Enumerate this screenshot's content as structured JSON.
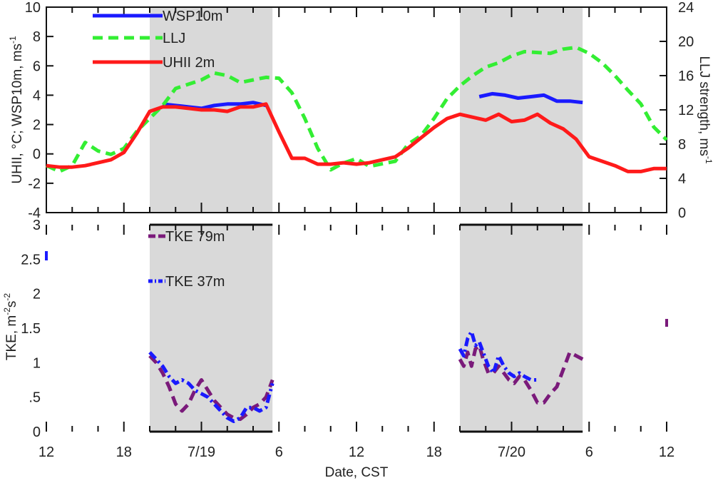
{
  "chart_data": [
    {
      "type": "line",
      "panel": "top",
      "xlabel": "Date, CST",
      "x_tick_labels": [
        "12",
        "18",
        "7/19",
        "6",
        "12",
        "18",
        "7/20",
        "6",
        "12"
      ],
      "xlim": [
        12,
        60
      ],
      "ylabel_left": "UHII, °C; WSP10m, ms",
      "ylabel_left_sup": "-1",
      "ylim_left": [
        -4,
        10
      ],
      "yticks_left": [
        "-4",
        "-2",
        "0",
        "2",
        "4",
        "6",
        "8",
        "10"
      ],
      "ylabel_right": "LLJ strength, ms",
      "ylabel_right_sup": "-1",
      "ylim_right": [
        0,
        24
      ],
      "yticks_right": [
        "0",
        "4",
        "8",
        "12",
        "16",
        "20",
        "24"
      ],
      "night_shading": [
        [
          20,
          29.5
        ],
        [
          44,
          53.5
        ]
      ],
      "legend": [
        "WSP10m",
        "LLJ",
        "UHII 2m"
      ],
      "series": [
        {
          "name": "WSP10m",
          "color": "#1a1aff",
          "axis": "left",
          "style": "solid",
          "x": [
            21,
            22,
            23,
            24,
            25,
            26,
            27,
            28,
            29
          ],
          "values": [
            3.4,
            3.3,
            3.2,
            3.1,
            3.3,
            3.4,
            3.4,
            3.5,
            3.3
          ],
          "x2": [
            45.5,
            46.5,
            47.5,
            48.5,
            49.5,
            50.5,
            51.5,
            52.5,
            53.5
          ],
          "values2": [
            3.9,
            4.1,
            4.0,
            3.8,
            3.9,
            4.0,
            3.6,
            3.6,
            3.5
          ]
        },
        {
          "name": "LLJ",
          "color": "#33ee33",
          "axis": "right",
          "style": "dashed",
          "x": [
            12,
            13,
            14,
            15,
            16,
            17,
            18,
            19,
            20,
            21,
            22,
            23,
            24,
            25,
            26,
            27,
            28,
            29,
            30,
            31,
            32,
            33,
            34,
            35,
            36,
            37,
            38,
            39,
            40,
            41,
            42,
            43,
            44,
            45,
            46,
            47,
            48,
            49,
            50,
            51,
            52,
            53,
            54,
            55,
            56,
            57,
            58,
            59,
            60
          ],
          "values": [
            5.5,
            4.8,
            5.5,
            8.2,
            7.2,
            6.8,
            7.5,
            9.5,
            11.0,
            12.5,
            14.5,
            15.0,
            15.5,
            16.3,
            16.0,
            15.2,
            15.5,
            15.8,
            15.7,
            14.0,
            11.0,
            7.5,
            5.0,
            5.8,
            6.3,
            5.4,
            5.7,
            6.0,
            8.0,
            9.0,
            11.0,
            13.3,
            14.8,
            16.0,
            17.0,
            17.5,
            18.3,
            18.8,
            18.7,
            18.6,
            19.1,
            19.3,
            18.6,
            17.5,
            16.0,
            14.3,
            12.7,
            10.0,
            8.5
          ]
        },
        {
          "name": "UHII 2m",
          "color": "#ff1a1a",
          "axis": "left",
          "style": "solid",
          "x": [
            12,
            13,
            14,
            15,
            16,
            17,
            18,
            19,
            20,
            21,
            22,
            23,
            24,
            25,
            26,
            27,
            28,
            29,
            30,
            31,
            32,
            33,
            34,
            35,
            36,
            37,
            38,
            39,
            40,
            41,
            42,
            43,
            44,
            45,
            46,
            47,
            48,
            49,
            50,
            51,
            52,
            53,
            54,
            55,
            56,
            57,
            58,
            59,
            60
          ],
          "values": [
            -0.8,
            -0.9,
            -0.9,
            -0.8,
            -0.6,
            -0.4,
            0.1,
            1.4,
            2.9,
            3.2,
            3.2,
            3.1,
            3.0,
            3.0,
            2.9,
            3.2,
            3.2,
            3.4,
            1.5,
            -0.3,
            -0.3,
            -0.7,
            -0.7,
            -0.6,
            -0.7,
            -0.6,
            -0.4,
            -0.2,
            0.4,
            1.1,
            1.8,
            2.4,
            2.7,
            2.5,
            2.3,
            2.7,
            2.2,
            2.3,
            2.7,
            2.1,
            1.7,
            1.0,
            -0.2,
            -0.5,
            -0.8,
            -1.2,
            -1.2,
            -1.0,
            -1.0
          ]
        }
      ]
    },
    {
      "type": "line",
      "panel": "bottom",
      "xlabel": "Date, CST",
      "x_tick_labels": [
        "12",
        "18",
        "7/19",
        "6",
        "12",
        "18",
        "7/20",
        "6",
        "12"
      ],
      "xlim": [
        12,
        60
      ],
      "ylabel": "TKE, m",
      "ylabel_sup1": "-2",
      "ylabel_mid": "s",
      "ylabel_sup2": "-2",
      "ylim": [
        0,
        3
      ],
      "yticks": [
        "0",
        ".5",
        "1",
        "1.5",
        "2",
        "2.5",
        "3"
      ],
      "night_shading": [
        [
          20,
          29.5
        ],
        [
          44,
          53.5
        ]
      ],
      "legend": [
        "TKE 79m",
        "TKE 37m"
      ],
      "series": [
        {
          "name": "TKE 79m",
          "color": "#7a1a7a",
          "axis": "left",
          "style": "dashed",
          "x": [
            20,
            20.5,
            21,
            21.5,
            22,
            22.5,
            23,
            23.5,
            24,
            24.5,
            25,
            25.5,
            26,
            26.5,
            27,
            27.5,
            28,
            28.5,
            29,
            29.5
          ],
          "values": [
            1.1,
            1.0,
            0.85,
            0.65,
            0.4,
            0.3,
            0.4,
            0.6,
            0.75,
            0.6,
            0.45,
            0.35,
            0.25,
            0.2,
            0.18,
            0.25,
            0.35,
            0.4,
            0.5,
            0.75
          ],
          "x2": [
            44,
            44.3,
            44.6,
            44.9,
            45.2,
            45.5,
            45.8,
            46.2,
            46.6,
            47,
            47.4,
            47.8,
            48.2,
            48.6,
            49,
            49.5,
            50,
            50.5,
            51,
            51.5,
            52,
            52.5,
            53,
            53.5
          ],
          "values2": [
            1.05,
            0.95,
            1.15,
            0.95,
            1.2,
            1.25,
            1.05,
            0.85,
            0.85,
            0.95,
            0.85,
            0.75,
            0.7,
            0.8,
            0.75,
            0.6,
            0.42,
            0.42,
            0.55,
            0.65,
            0.9,
            1.15,
            1.1,
            1.05
          ]
        },
        {
          "name": "TKE 37m",
          "color": "#1a1aff",
          "axis": "left",
          "style": "dotdash",
          "x": [
            20,
            20.5,
            21,
            21.5,
            22,
            22.5,
            23,
            23.5,
            24,
            24.5,
            25,
            25.5,
            26,
            26.5,
            27,
            27.5,
            28,
            28.5,
            29,
            29.5
          ],
          "values": [
            1.15,
            1.05,
            0.95,
            0.8,
            0.7,
            0.75,
            0.7,
            0.6,
            0.55,
            0.5,
            0.4,
            0.3,
            0.2,
            0.15,
            0.2,
            0.35,
            0.35,
            0.3,
            0.35,
            0.7
          ],
          "x2": [
            44,
            44.3,
            44.6,
            44.9,
            45.2,
            45.5,
            45.8,
            46.2,
            46.6,
            47,
            47.4,
            47.8,
            48.2,
            48.6,
            49,
            49.5,
            50
          ],
          "values2": [
            1.2,
            1.1,
            1.35,
            1.45,
            1.25,
            1.3,
            1.15,
            0.95,
            0.85,
            1.1,
            0.95,
            0.85,
            0.8,
            0.85,
            0.8,
            0.75,
            0.75
          ]
        }
      ]
    }
  ],
  "colors": {
    "shade": "#d9d9d9",
    "axis": "#111111"
  }
}
